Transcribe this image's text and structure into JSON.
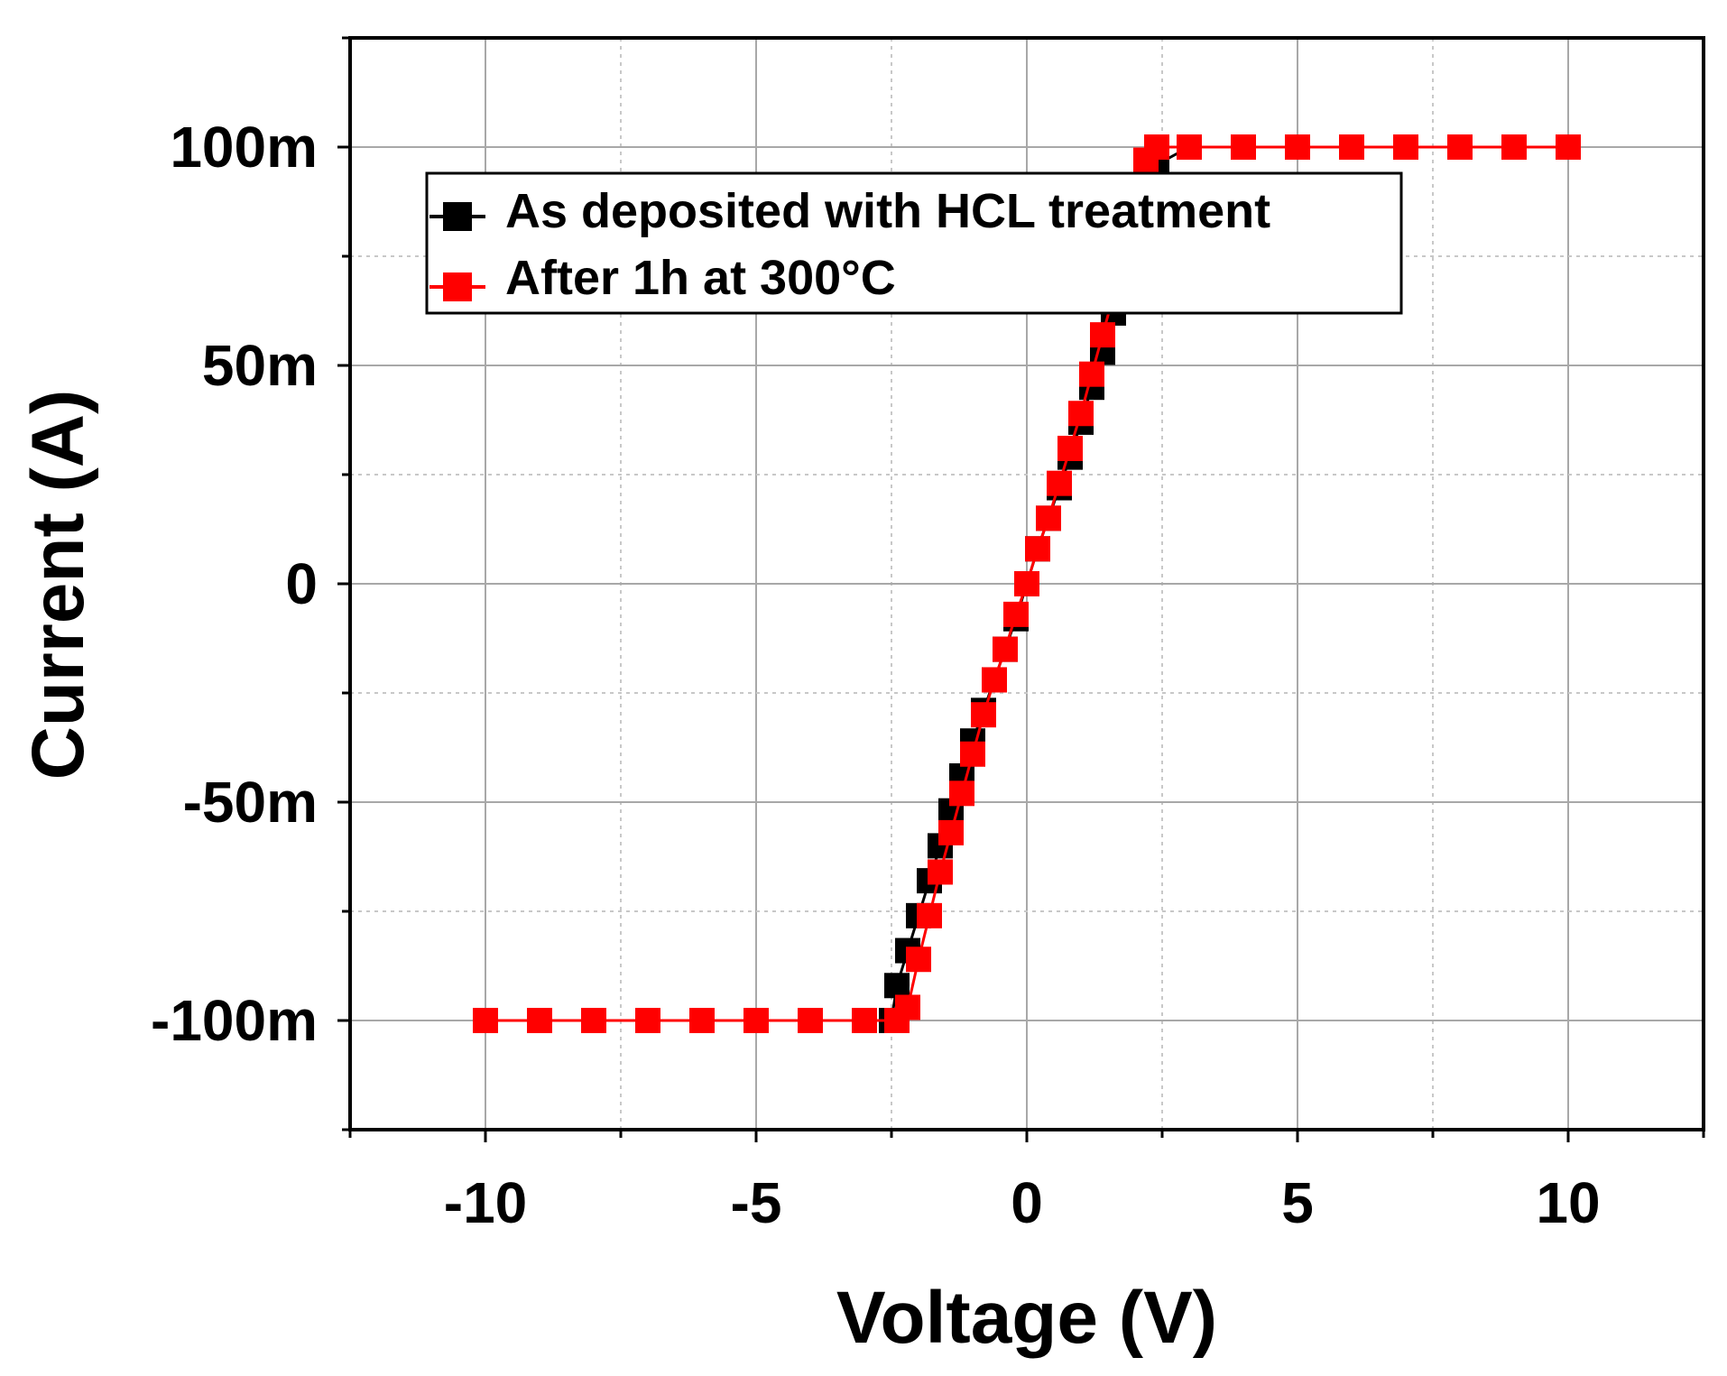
{
  "chart_data": {
    "type": "scatter",
    "xlabel": "Voltage (V)",
    "ylabel": "Current (A)",
    "xlim": [
      -12.5,
      12.5
    ],
    "ylim": [
      -0.125,
      0.125
    ],
    "x_ticks": [
      -10,
      -5,
      0,
      5,
      10
    ],
    "x_tick_labels": [
      "-10",
      "-5",
      "0",
      "5",
      "10"
    ],
    "y_ticks": [
      -0.1,
      -0.05,
      0,
      0.05,
      0.1
    ],
    "y_tick_labels": [
      "-100m",
      "-50m",
      "0",
      "50m",
      "100m"
    ],
    "grid": true,
    "legend_position": "top-left",
    "series": [
      {
        "name": "As deposited with HCL treatment",
        "color": "#000000",
        "marker": "square",
        "x": [
          -10,
          -9,
          -8,
          -7,
          -6,
          -5,
          -4,
          -3,
          -2.5,
          -2.4,
          -2.2,
          -2.0,
          -1.8,
          -1.6,
          -1.4,
          -1.2,
          -1.0,
          -0.8,
          -0.6,
          -0.4,
          -0.2,
          0,
          0.2,
          0.4,
          0.6,
          0.8,
          1.0,
          1.2,
          1.4,
          1.6,
          1.8,
          2.0,
          2.2,
          2.4,
          3,
          4,
          5,
          6,
          7,
          8,
          9,
          10
        ],
        "y": [
          -0.1,
          -0.1,
          -0.1,
          -0.1,
          -0.1,
          -0.1,
          -0.1,
          -0.1,
          -0.1,
          -0.092,
          -0.084,
          -0.076,
          -0.068,
          -0.06,
          -0.052,
          -0.044,
          -0.036,
          -0.029,
          -0.022,
          -0.015,
          -0.008,
          0,
          0.008,
          0.015,
          0.022,
          0.029,
          0.037,
          0.045,
          0.053,
          0.062,
          0.071,
          0.08,
          0.088,
          0.096,
          0.1,
          0.1,
          0.1,
          0.1,
          0.1,
          0.1,
          0.1,
          0.1
        ]
      },
      {
        "name": "After 1h at 300°C",
        "color": "#ff0000",
        "marker": "square",
        "x": [
          -10,
          -9,
          -8,
          -7,
          -6,
          -5,
          -4,
          -3,
          -2.4,
          -2.2,
          -2.0,
          -1.8,
          -1.6,
          -1.4,
          -1.2,
          -1.0,
          -0.8,
          -0.6,
          -0.4,
          -0.2,
          0,
          0.2,
          0.4,
          0.6,
          0.8,
          1.0,
          1.2,
          1.4,
          1.6,
          1.8,
          2.0,
          2.2,
          2.4,
          3,
          4,
          5,
          6,
          7,
          8,
          9,
          10
        ],
        "y": [
          -0.1,
          -0.1,
          -0.1,
          -0.1,
          -0.1,
          -0.1,
          -0.1,
          -0.1,
          -0.1,
          -0.097,
          -0.086,
          -0.076,
          -0.066,
          -0.057,
          -0.048,
          -0.039,
          -0.03,
          -0.022,
          -0.015,
          -0.007,
          0,
          0.008,
          0.015,
          0.023,
          0.031,
          0.039,
          0.048,
          0.057,
          0.066,
          0.076,
          0.086,
          0.097,
          0.1,
          0.1,
          0.1,
          0.1,
          0.1,
          0.1,
          0.1,
          0.1,
          0.1
        ]
      }
    ]
  }
}
